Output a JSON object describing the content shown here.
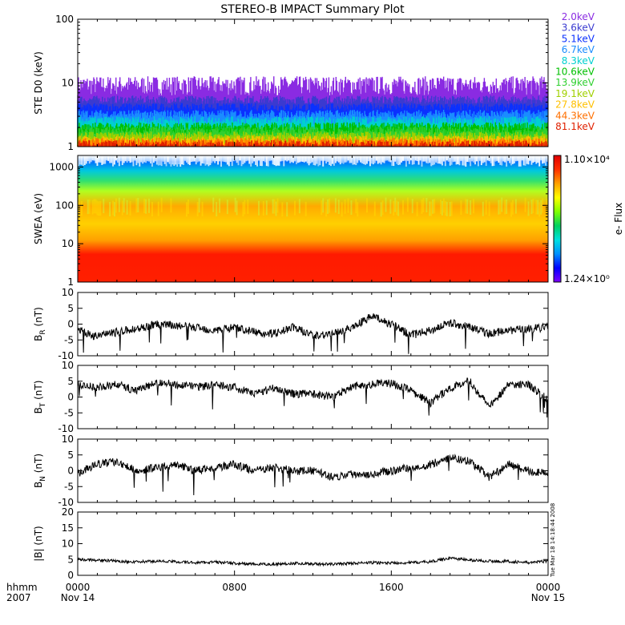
{
  "title": "STEREO-B IMPACT Summary Plot",
  "timestamp": "Tue Mar 18 14:18:44 2008",
  "x_axis": {
    "labels_left": [
      "hhmm",
      "2007"
    ],
    "ticks": [
      {
        "hour": 0,
        "label": "0000",
        "sublabel": "Nov 14"
      },
      {
        "hour": 8,
        "label": "0800",
        "sublabel": ""
      },
      {
        "hour": 16,
        "label": "1600",
        "sublabel": ""
      },
      {
        "hour": 24,
        "label": "0000",
        "sublabel": "Nov 15"
      }
    ]
  },
  "colors": {
    "frame": "#000000",
    "line": "#000000",
    "colorbar_stops": [
      "#7f00ff",
      "#0000ff",
      "#0090ff",
      "#00e0e0",
      "#00d060",
      "#80ff00",
      "#ffff00",
      "#ffa000",
      "#ff3000",
      "#e00000"
    ]
  },
  "chart_data": [
    {
      "type": "bar",
      "panel": "ste",
      "ylabel": "STE D0 (keV)",
      "y_scale": "log",
      "ylim": [
        1,
        100
      ],
      "y_ticks": [
        1,
        10,
        100
      ],
      "x_range_hours": [
        0,
        24
      ],
      "legend_placement": "right",
      "series": [
        {
          "name": "2.0keV",
          "color": "#8a2be2",
          "typical_value": 8.5
        },
        {
          "name": "3.6keV",
          "color": "#3a3ad0",
          "typical_value": 5.5
        },
        {
          "name": "5.1keV",
          "color": "#0a30ff",
          "typical_value": 4.2
        },
        {
          "name": "6.7keV",
          "color": "#1a8cff",
          "typical_value": 3.3
        },
        {
          "name": "8.3keV",
          "color": "#00d0d0",
          "typical_value": 2.6
        },
        {
          "name": "10.6keV",
          "color": "#00c000",
          "typical_value": 2.1
        },
        {
          "name": "13.9keV",
          "color": "#30d030",
          "typical_value": 1.8
        },
        {
          "name": "19.1keV",
          "color": "#a0d000",
          "typical_value": 1.5
        },
        {
          "name": "27.8keV",
          "color": "#ffc000",
          "typical_value": 1.3
        },
        {
          "name": "44.3keV",
          "color": "#ff7000",
          "typical_value": 1.2
        },
        {
          "name": "81.1keV",
          "color": "#e02000",
          "typical_value": 1.1
        }
      ]
    },
    {
      "type": "heatmap",
      "panel": "swea",
      "ylabel": "SWEA (eV)",
      "y_scale": "log",
      "ylim": [
        1,
        2000
      ],
      "y_ticks": [
        1,
        10,
        100,
        1000
      ],
      "x_range_hours": [
        0,
        24
      ],
      "colorbar": {
        "label": "e- Flux",
        "max_label": "1.10×10⁴",
        "min_label": "1.24×10⁰",
        "scale": "log"
      }
    },
    {
      "type": "line",
      "panel": "br",
      "ylabel_main": "B",
      "ylabel_sub": "R",
      "ylabel_unit": "(nT)",
      "ylim": [
        -10,
        10
      ],
      "y_ticks": [
        -10,
        -5,
        0,
        5,
        10
      ],
      "x_range_hours": [
        0,
        24
      ],
      "hours": [
        0,
        1,
        2,
        3,
        4,
        5,
        6,
        7,
        8,
        9,
        10,
        11,
        12,
        13,
        14,
        15,
        16,
        17,
        18,
        19,
        20,
        21,
        22,
        23,
        24
      ],
      "values": [
        -2,
        -4,
        -2.5,
        -1.5,
        0,
        -0.5,
        -1,
        -2,
        -1,
        -2.5,
        -3,
        -1,
        -3.5,
        -3,
        -1,
        2.5,
        0,
        -3.5,
        -2,
        0.5,
        -1,
        -3,
        -2,
        -1.5,
        -1
      ]
    },
    {
      "type": "line",
      "panel": "bt",
      "ylabel_main": "B",
      "ylabel_sub": "T",
      "ylabel_unit": "(nT)",
      "ylim": [
        -10,
        10
      ],
      "y_ticks": [
        -10,
        -5,
        0,
        5,
        10
      ],
      "x_range_hours": [
        0,
        24
      ],
      "hours": [
        0,
        1,
        2,
        3,
        4,
        5,
        6,
        7,
        8,
        9,
        10,
        11,
        12,
        13,
        14,
        15,
        16,
        17,
        18,
        19,
        20,
        21,
        22,
        23,
        24
      ],
      "values": [
        4,
        3,
        4,
        2,
        4.5,
        4,
        3,
        4,
        3,
        1,
        3,
        1,
        1,
        0,
        3.5,
        4,
        4.5,
        2,
        -2,
        3,
        5,
        -3,
        4,
        4,
        -1
      ]
    },
    {
      "type": "line",
      "panel": "bn",
      "ylabel_main": "B",
      "ylabel_sub": "N",
      "ylabel_unit": "(nT)",
      "ylim": [
        -10,
        10
      ],
      "y_ticks": [
        -10,
        -5,
        0,
        5,
        10
      ],
      "x_range_hours": [
        0,
        24
      ],
      "hours": [
        0,
        1,
        2,
        3,
        4,
        5,
        6,
        7,
        8,
        9,
        10,
        11,
        12,
        13,
        14,
        15,
        16,
        17,
        18,
        19,
        20,
        21,
        22,
        23,
        24
      ],
      "values": [
        -1,
        2,
        3,
        0,
        1,
        2,
        0,
        1,
        2,
        0,
        1,
        0,
        0,
        -2,
        -1,
        -1,
        0,
        1,
        2,
        4,
        3,
        -2,
        2,
        0,
        -1
      ]
    },
    {
      "type": "line",
      "panel": "bmag",
      "ylabel_main": "|B|",
      "ylabel_sub": "",
      "ylabel_unit": "(nT)",
      "ylim": [
        0,
        20
      ],
      "y_ticks": [
        0,
        5,
        10,
        15,
        20
      ],
      "x_range_hours": [
        0,
        24
      ],
      "hours": [
        0,
        1,
        2,
        3,
        4,
        5,
        6,
        7,
        8,
        9,
        10,
        11,
        12,
        13,
        14,
        15,
        16,
        17,
        18,
        19,
        20,
        21,
        22,
        23,
        24
      ],
      "values": [
        5,
        4.8,
        4.5,
        4.2,
        4.5,
        4.3,
        4.0,
        4.2,
        3.8,
        3.5,
        3.5,
        3.8,
        3.6,
        3.5,
        3.8,
        4.0,
        3.9,
        4.0,
        4.3,
        5.5,
        4.8,
        4.5,
        4.4,
        4.0,
        4.5
      ]
    }
  ]
}
